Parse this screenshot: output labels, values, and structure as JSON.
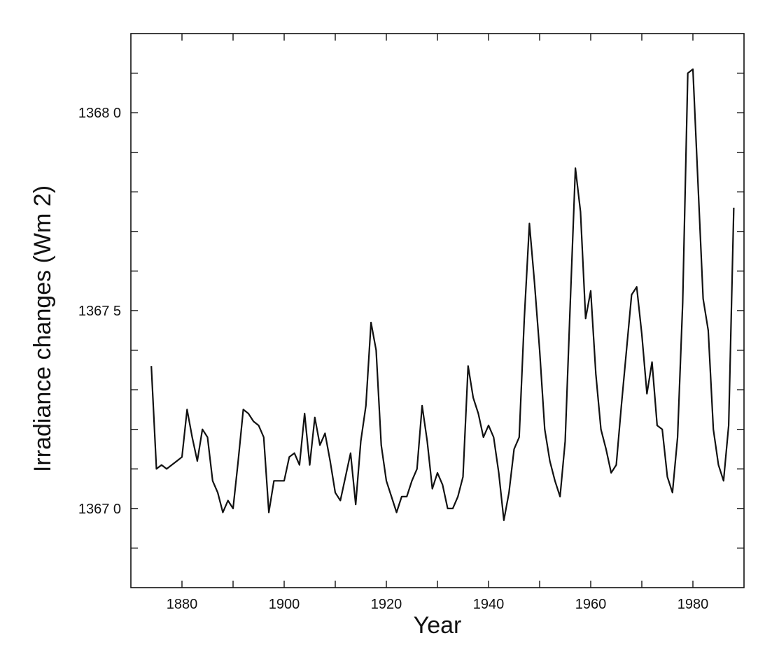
{
  "chart_data": {
    "type": "line",
    "title": "",
    "xlabel": "Year",
    "ylabel": "Irradiance changes  (Wm 2)",
    "xlim": [
      1870,
      1990
    ],
    "ylim": [
      1366.8,
      1368.2
    ],
    "xticks": [
      {
        "value": 1880,
        "label": "1880"
      },
      {
        "value": 1900,
        "label": "1900"
      },
      {
        "value": 1920,
        "label": "1920"
      },
      {
        "value": 1940,
        "label": "1940"
      },
      {
        "value": 1960,
        "label": "1960"
      },
      {
        "value": 1980,
        "label": "1980"
      }
    ],
    "yticks": [
      {
        "value": 1367.0,
        "label": "1367 0"
      },
      {
        "value": 1367.5,
        "label": "1367 5"
      },
      {
        "value": 1368.0,
        "label": "1368 0"
      }
    ],
    "grid": false,
    "series": [
      {
        "x": [
          1874,
          1875,
          1876,
          1877,
          1878,
          1879,
          1880,
          1881,
          1882,
          1883,
          1884,
          1885,
          1886,
          1887,
          1888,
          1889,
          1890,
          1891,
          1892,
          1893,
          1894,
          1895,
          1896,
          1897,
          1898,
          1899,
          1900,
          1901,
          1902,
          1903,
          1904,
          1905,
          1906,
          1907,
          1908,
          1909,
          1910,
          1911,
          1912,
          1913,
          1914,
          1915,
          1916,
          1917,
          1918,
          1919,
          1920,
          1921,
          1922,
          1923,
          1924,
          1925,
          1926,
          1927,
          1928,
          1929,
          1930,
          1931,
          1932,
          1933,
          1934,
          1935,
          1936,
          1937,
          1938,
          1939,
          1940,
          1941,
          1942,
          1943,
          1944,
          1945,
          1946,
          1947,
          1948,
          1949,
          1950,
          1951,
          1952,
          1953,
          1954,
          1955,
          1956,
          1957,
          1958,
          1959,
          1960,
          1961,
          1962,
          1963,
          1964,
          1965,
          1966,
          1967,
          1968,
          1969,
          1970,
          1971,
          1972,
          1973,
          1974,
          1975,
          1976,
          1977,
          1978,
          1979,
          1980,
          1981,
          1982,
          1983,
          1984,
          1985,
          1986,
          1987,
          1988
        ],
        "y": [
          1367.36,
          1367.1,
          1367.11,
          1367.1,
          1367.11,
          1367.12,
          1367.13,
          1367.25,
          1367.18,
          1367.12,
          1367.2,
          1367.18,
          1367.07,
          1367.04,
          1366.99,
          1367.02,
          1367.0,
          1367.12,
          1367.25,
          1367.24,
          1367.22,
          1367.21,
          1367.18,
          1366.99,
          1367.07,
          1367.07,
          1367.07,
          1367.13,
          1367.14,
          1367.11,
          1367.24,
          1367.11,
          1367.23,
          1367.16,
          1367.19,
          1367.12,
          1367.04,
          1367.02,
          1367.08,
          1367.14,
          1367.01,
          1367.17,
          1367.26,
          1367.47,
          1367.4,
          1367.16,
          1367.07,
          1367.03,
          1366.99,
          1367.03,
          1367.03,
          1367.07,
          1367.1,
          1367.26,
          1367.17,
          1367.05,
          1367.09,
          1367.06,
          1367.0,
          1367.0,
          1367.03,
          1367.08,
          1367.36,
          1367.28,
          1367.24,
          1367.18,
          1367.21,
          1367.18,
          1367.09,
          1366.97,
          1367.04,
          1367.15,
          1367.18,
          1367.48,
          1367.72,
          1367.57,
          1367.4,
          1367.2,
          1367.12,
          1367.07,
          1367.03,
          1367.17,
          1367.52,
          1367.86,
          1367.75,
          1367.48,
          1367.55,
          1367.34,
          1367.2,
          1367.15,
          1367.09,
          1367.11,
          1367.26,
          1367.4,
          1367.54,
          1367.56,
          1367.44,
          1367.29,
          1367.37,
          1367.21,
          1367.2,
          1367.08,
          1367.04,
          1367.18,
          1367.52,
          1368.1,
          1368.11,
          1367.82,
          1367.53,
          1367.45,
          1367.2,
          1367.11,
          1367.07,
          1367.21,
          1367.76
        ]
      }
    ]
  }
}
